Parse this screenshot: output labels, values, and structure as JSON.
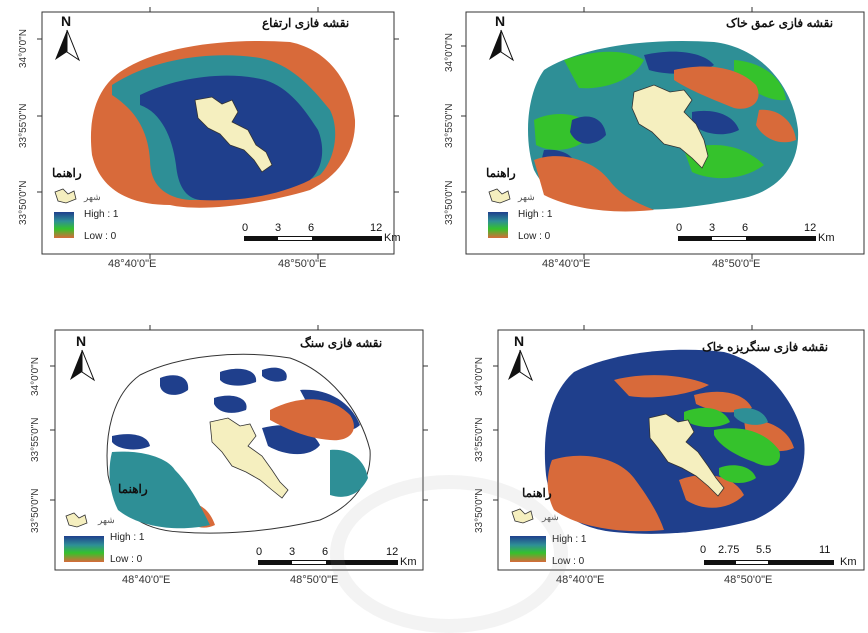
{
  "panels": [
    {
      "id": "elevation",
      "title": "نقشه فازی ارتفاع",
      "north": "N",
      "legend_title": "راهنما",
      "city_label": "شهر",
      "high_label": "High : 1",
      "low_label": "Low : 0",
      "scale_numbers": [
        "0",
        "3",
        "6",
        "12"
      ],
      "scale_unit": "Km",
      "lat_labels": [
        "34°0'0\"N",
        "33°55'0\"N",
        "33°50'0\"N"
      ],
      "lon_labels": [
        "48°40'0\"E",
        "48°50'0\"E"
      ]
    },
    {
      "id": "soil_depth",
      "title": "نقشه فازی عمق خاک",
      "north": "N",
      "legend_title": "راهنما",
      "city_label": "شهر",
      "high_label": "High : 1",
      "low_label": "Low : 0",
      "scale_numbers": [
        "0",
        "3",
        "6",
        "12"
      ],
      "scale_unit": "Km",
      "lat_labels": [
        "34°0'0\"N",
        "33°55'0\"N",
        "33°50'0\"N"
      ],
      "lon_labels": [
        "48°40'0\"E",
        "48°50'0\"E"
      ]
    },
    {
      "id": "rock",
      "title": "نقشه فازی سنگ",
      "north": "N",
      "legend_title": "راهنما",
      "city_label": "شهر",
      "high_label": "High : 1",
      "low_label": "Low : 0",
      "scale_numbers": [
        "0",
        "3",
        "6",
        "12"
      ],
      "scale_unit": "Km",
      "lat_labels": [
        "34°0'0\"N",
        "33°55'0\"N",
        "33°50'0\"N"
      ],
      "lon_labels": [
        "48°40'0\"E",
        "48°50'0\"E"
      ]
    },
    {
      "id": "gravel",
      "title": "نقشه فازی سنگریزه خاک",
      "north": "N",
      "legend_title": "راهنما",
      "city_label": "شهر",
      "high_label": "High : 1",
      "low_label": "Low : 0",
      "scale_numbers": [
        "0",
        "2.75",
        "5.5",
        "11"
      ],
      "scale_unit": "Km",
      "lat_labels": [
        "34°0'0\"N",
        "33°55'0\"N",
        "33°50'0\"N"
      ],
      "lon_labels": [
        "48°40'0\"E",
        "48°50'0\"E"
      ]
    }
  ],
  "colors": {
    "high": "#1f3f8c",
    "mid_teal": "#2e8f96",
    "mid_green": "#35c22c",
    "low": "#d86a3a",
    "city_fill": "#f5efbf",
    "frame": "#333333"
  }
}
